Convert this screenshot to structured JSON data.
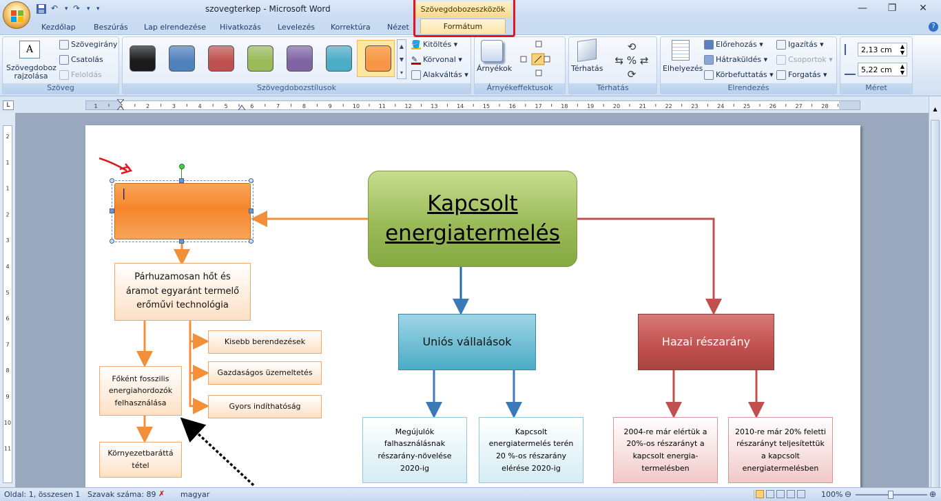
{
  "window": {
    "title": "szovegterkep - Microsoft Word",
    "minimize": "—",
    "restore": "❐",
    "close": "✕"
  },
  "qat": {
    "undo": "↶",
    "redo": "↷",
    "more": "▾"
  },
  "context_tab": {
    "group_title": "Szövegdobozeszközök",
    "tab_label": "Formátum"
  },
  "tabs": [
    "Kezdőlap",
    "Beszúrás",
    "Lap elrendezése",
    "Hivatkozás",
    "Levelezés",
    "Korrektúra",
    "Nézet"
  ],
  "help": "?",
  "ribbon": {
    "szoveg": {
      "label": "Szöveg",
      "draw_textbox": "Szövegdoboz rajzolása",
      "direction": "Szövegirány",
      "link": "Csatolás",
      "unlink": "Feloldás"
    },
    "styles": {
      "label": "Szövegdobozstílusok",
      "fill": "Kitöltés",
      "outline": "Körvonal",
      "change_shape": "Alakváltás",
      "swatches": [
        "#1a1a1a",
        "#4f81bd",
        "#c0504d",
        "#9bbb59",
        "#8064a2",
        "#4bacc6",
        "#f79646"
      ]
    },
    "shadow": {
      "label": "Árnyékeffektusok",
      "btn": "Árnyékok"
    },
    "threed": {
      "label": "Térhatás",
      "btn": "Térhatás"
    },
    "arrange": {
      "label": "Elrendezés",
      "position": "Elhelyezés",
      "front": "Előrehozás",
      "back": "Hátraküldés",
      "wrap": "Körbefuttatás",
      "align": "Igazítás",
      "group": "Csoportok",
      "rotate": "Forgatás"
    },
    "size": {
      "label": "Méret",
      "height": "2,13 cm",
      "width": "5,22 cm"
    }
  },
  "ruler": {
    "ticks": [
      "1",
      "1",
      "2",
      "3",
      "4",
      "5",
      "6",
      "7",
      "8",
      "9",
      "10",
      "11",
      "12",
      "13",
      "14",
      "15",
      "16",
      "17",
      "18",
      "19",
      "20",
      "21",
      "22",
      "23",
      "24",
      "25",
      "26",
      "27",
      "28"
    ]
  },
  "vruler": {
    "ticks": [
      "2",
      "1",
      "1",
      "2",
      "3",
      "4",
      "5",
      "6",
      "7",
      "8",
      "9",
      "10",
      "11"
    ]
  },
  "diagram": {
    "root": "Kapcsolt energiatermelés",
    "empty_box_cursor": "|",
    "left": {
      "main": "Párhuzamosan hőt és áramot egyaránt termelő erőművi technológia",
      "sub": [
        "Kisebb berendezések",
        "Gazdaságos  üzemeltetés",
        "Gyors indíthatóság"
      ],
      "chain": [
        "Főként fosszilis energiahordozók felhasználása",
        "Környezetbaráttá tétel"
      ]
    },
    "mid": {
      "title": "Uniós vállalások",
      "items": [
        "Megújulók falhasználásnak részarány-növelése 2020-ig",
        "Kapcsolt energiatermelés terén 20 %-os részarány elérése 2020-ig"
      ]
    },
    "right": {
      "title": "Hazai részarány",
      "items": [
        "2004-re már elértük a 20%-os részarányt a kapcsolt energia-termelésben",
        "2010-re már 20% feletti részarányt teljesítettük a kapcsolt energiatermelésben"
      ]
    }
  },
  "status": {
    "page": "Oldal: 1, összesen 1",
    "words": "Szavak száma: 89",
    "language": "magyar",
    "zoom": "100%"
  }
}
